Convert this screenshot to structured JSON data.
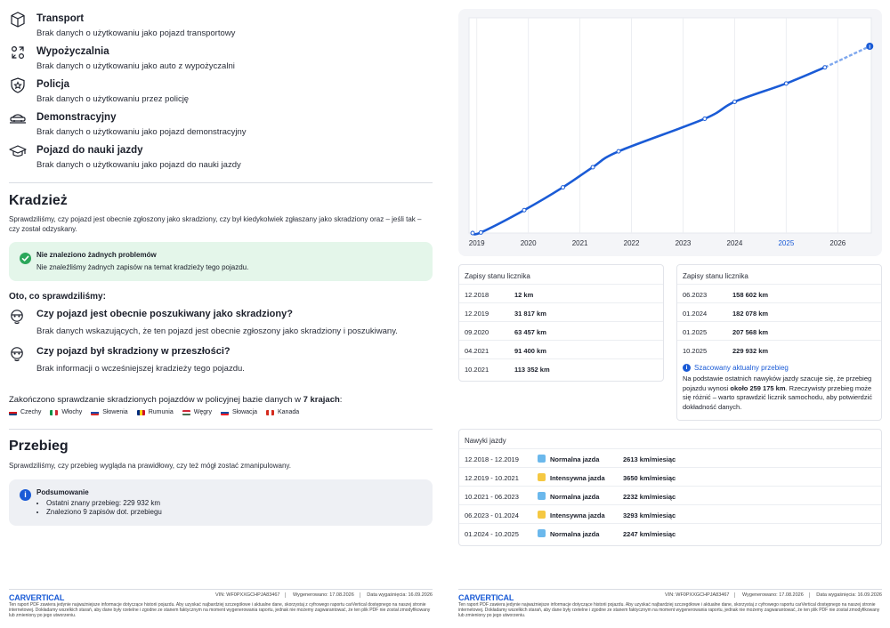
{
  "usage": [
    {
      "icon": "box-icon",
      "title": "Transport",
      "desc": "Brak danych o użytkowaniu jako pojazd transportowy"
    },
    {
      "icon": "rental-icon",
      "title": "Wypożyczalnia",
      "desc": "Brak danych o użytkowaniu jako auto z wypożyczalni"
    },
    {
      "icon": "police-badge-icon",
      "title": "Policja",
      "desc": "Brak danych o użytkowaniu przez policję"
    },
    {
      "icon": "demo-car-icon",
      "title": "Demonstracyjny",
      "desc": "Brak danych o użytkowaniu jako pojazd demonstracyjny"
    },
    {
      "icon": "graduation-cap-icon",
      "title": "Pojazd do nauki jazdy",
      "desc": "Brak danych o użytkowaniu jako pojazd do nauki jazdy"
    }
  ],
  "theft": {
    "title": "Kradzież",
    "desc": "Sprawdziliśmy, czy pojazd jest obecnie zgłoszony jako skradziony, czy był kiedykolwiek zgłaszany jako skradziony oraz – jeśli tak – czy został odzyskany.",
    "ok_title": "Nie znaleziono żadnych problemów",
    "ok_text": "Nie znaleźliśmy żadnych zapisów na temat kradzieży tego pojazdu.",
    "checked_head": "Oto, co sprawdziliśmy:",
    "questions": [
      {
        "title": "Czy pojazd jest obecnie poszukiwany jako skradziony?",
        "desc": "Brak danych wskazujących, że ten pojazd jest obecnie zgłoszony jako skradziony i poszukiwany."
      },
      {
        "title": "Czy pojazd był skradziony w przeszłości?",
        "desc": "Brak informacji o wcześniejszej kradzieży tego pojazdu."
      }
    ],
    "db_prefix": "Zakończono sprawdzanie skradzionych pojazdów w policyjnej bazie danych w ",
    "db_count": "7 krajach",
    "db_suffix": ":",
    "countries": [
      "Czechy",
      "Włochy",
      "Słowenia",
      "Rumunia",
      "Węgry",
      "Słowacja",
      "Kanada"
    ]
  },
  "mileage": {
    "title": "Przebieg",
    "desc": "Sprawdziliśmy, czy przebieg wygląda na prawidłowy, czy też mógł zostać zmanipulowany.",
    "summary_title": "Podsumowanie",
    "summary_items": [
      "Ostatni znany przebieg: 229 932 km",
      "Znaleziono 9 zapisów dot. przebiegu"
    ]
  },
  "footer": {
    "logo": "CARVERTICAL",
    "vin": "VIN: WF0PXXGCHPJA83467",
    "generated": "Wygenerowano: 17.08.2026",
    "valid": "Data wygaśnięcia: 16.09.2026",
    "disclaimer": "Ten raport PDF zawiera jedynie najważniejsze informacje dotyczące historii pojazdu. Aby uzyskać najbardziej szczegółowe i aktualne dane, skorzystaj z cyfrowego raportu carVertical dostępnego na naszej stronie internetowej. Dokładamy wszelkich starań, aby dane były rzetelne i zgodne ze stanem faktycznym na moment wygenerowania raportu, jednak nie możemy zagwarantować, że ten plik PDF nie został zmodyfikowany lub zmieniony po jego utworzeniu."
  },
  "chart_data": {
    "type": "line",
    "x_ticks": [
      "2019",
      "2020",
      "2021",
      "2022",
      "2023",
      "2024",
      "2025",
      "2026"
    ],
    "highlight_tick": "2025",
    "x_range": [
      2018.85,
      2026.65
    ],
    "y_range": [
      0,
      259175
    ],
    "points": [
      {
        "x": 2018.92,
        "y": 12
      },
      {
        "x": 2019.08,
        "y": 820
      },
      {
        "x": 2019.92,
        "y": 31817
      },
      {
        "x": 2020.67,
        "y": 63457
      },
      {
        "x": 2021.25,
        "y": 91400
      },
      {
        "x": 2021.75,
        "y": 113352
      },
      {
        "x": 2023.42,
        "y": 158602
      },
      {
        "x": 2024.0,
        "y": 182078
      },
      {
        "x": 2025.0,
        "y": 207568
      },
      {
        "x": 2025.75,
        "y": 229932
      }
    ],
    "estimate_point": {
      "x": 2026.62,
      "y": 259175
    },
    "grid": true
  },
  "odometer": {
    "title": "Zapisy stanu licznika",
    "left": [
      {
        "date": "12.2018",
        "value": "12 km"
      },
      {
        "date": "12.2019",
        "value": "31 817 km"
      },
      {
        "date": "09.2020",
        "value": "63 457 km"
      },
      {
        "date": "04.2021",
        "value": "91 400 km"
      },
      {
        "date": "10.2021",
        "value": "113 352 km"
      }
    ],
    "right": [
      {
        "date": "06.2023",
        "value": "158 602 km"
      },
      {
        "date": "01.2024",
        "value": "182 078 km"
      },
      {
        "date": "01.2025",
        "value": "207 568 km"
      },
      {
        "date": "10.2025",
        "value": "229 932 km"
      }
    ],
    "estimate_title": "Szacowany aktualny przebieg",
    "estimate_pre": "Na podstawie ostatnich nawyków jazdy szacuje się, że przebieg pojazdu wynosi ",
    "estimate_value": "około 259 175 km",
    "estimate_post": ". Rzeczywisty przebieg może się różnić – warto sprawdzić licznik samochodu, aby potwierdzić dokładność danych."
  },
  "habits": {
    "title": "Nawyki jazdy",
    "colors": {
      "normal": "#6bb8ec",
      "intense": "#f5c842"
    },
    "rows": [
      {
        "period": "12.2018 - 12.2019",
        "kind": "Normalna jazda",
        "type": "normal",
        "rate": "2613 km/miesiąc"
      },
      {
        "period": "12.2019 - 10.2021",
        "kind": "Intensywna jazda",
        "type": "intense",
        "rate": "3650 km/miesiąc"
      },
      {
        "period": "10.2021 - 06.2023",
        "kind": "Normalna jazda",
        "type": "normal",
        "rate": "2232 km/miesiąc"
      },
      {
        "period": "06.2023 - 01.2024",
        "kind": "Intensywna jazda",
        "type": "intense",
        "rate": "3293 km/miesiąc"
      },
      {
        "period": "01.2024 - 10.2025",
        "kind": "Normalna jazda",
        "type": "normal",
        "rate": "2247 km/miesiąc"
      }
    ]
  }
}
